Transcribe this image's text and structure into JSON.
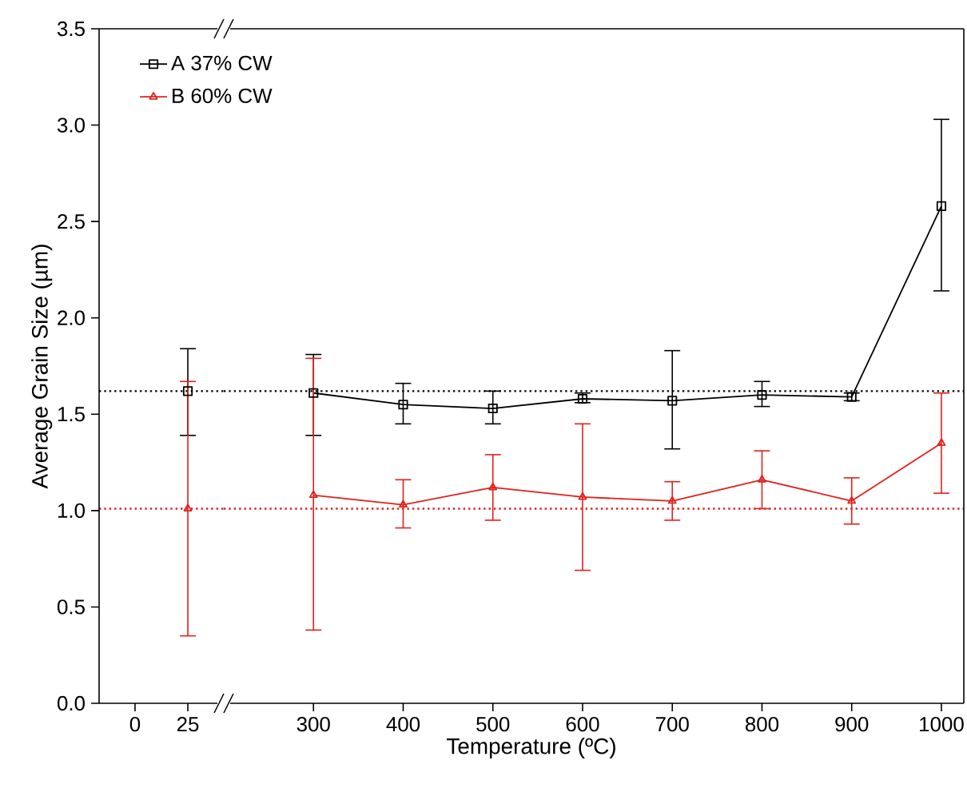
{
  "chart_data": [
    {
      "type": "line",
      "ylabel": "Average Grain Size (µm)",
      "x": [
        25
      ],
      "series": [
        {
          "color": "#000000",
          "marker": "square",
          "values": [
            1.62
          ],
          "errors": [
            [
              1.39,
              1.84
            ]
          ]
        },
        {
          "color": "#e0201b",
          "marker": "triangle",
          "values": [
            1.01
          ],
          "errors": [
            [
              0.35,
              1.67
            ]
          ]
        }
      ],
      "ref_lines": [
        {
          "axis": "y",
          "value": 1.62,
          "color": "#000000",
          "line_style": "dotted"
        },
        {
          "axis": "y",
          "value": 1.01,
          "color": "#e0201b",
          "line_style": "dotted"
        }
      ],
      "xlim": [
        -17,
        42
      ],
      "ylim": [
        0,
        3.5
      ],
      "xticks": [
        0,
        25
      ],
      "grid": false,
      "yticks": [
        {
          "value": 0,
          "label": "0.0"
        },
        {
          "value": 0.5,
          "label": "0.5"
        },
        {
          "value": 1,
          "label": "1.0"
        },
        {
          "value": 1.5,
          "label": "1.5"
        },
        {
          "value": 2,
          "label": "2.0"
        },
        {
          "value": 2.5,
          "label": "2.5"
        },
        {
          "value": 3,
          "label": "3.0"
        },
        {
          "value": 3.5,
          "label": "3.5"
        }
      ]
    },
    {
      "type": "line",
      "xlabel": "Temperature (ºC)",
      "x": [
        300,
        400,
        500,
        600,
        700,
        800,
        900,
        1000
      ],
      "series": [
        {
          "name": "A 37% CW",
          "color": "#000000",
          "marker": "square",
          "values": [
            1.61,
            1.55,
            1.53,
            1.58,
            1.57,
            1.6,
            1.59,
            2.58
          ],
          "errors": [
            [
              1.39,
              1.81
            ],
            [
              1.45,
              1.66
            ],
            [
              1.45,
              1.62
            ],
            [
              1.56,
              1.61
            ],
            [
              1.32,
              1.83
            ],
            [
              1.54,
              1.67
            ],
            [
              1.57,
              1.61
            ],
            [
              2.14,
              3.03
            ]
          ]
        },
        {
          "name": "B 60% CW",
          "color": "#e0201b",
          "marker": "triangle",
          "values": [
            1.08,
            1.03,
            1.12,
            1.07,
            1.05,
            1.16,
            1.05,
            1.35
          ],
          "errors": [
            [
              0.38,
              1.79
            ],
            [
              0.91,
              1.16
            ],
            [
              0.95,
              1.29
            ],
            [
              0.69,
              1.45
            ],
            [
              0.95,
              1.15
            ],
            [
              1.01,
              1.31
            ],
            [
              0.93,
              1.17
            ],
            [
              1.09,
              1.61
            ]
          ]
        }
      ],
      "ref_lines": [
        {
          "axis": "y",
          "value": 1.62,
          "color": "#000000",
          "line_style": "dotted"
        },
        {
          "axis": "y",
          "value": 1.01,
          "color": "#e0201b",
          "line_style": "dotted"
        }
      ],
      "xlim": [
        200,
        1025
      ],
      "ylim": [
        0,
        3.5
      ],
      "xticks": [
        300,
        400,
        500,
        600,
        700,
        800,
        900,
        1000
      ],
      "tick_labels": "x",
      "legend": "top left",
      "grid": false
    }
  ]
}
